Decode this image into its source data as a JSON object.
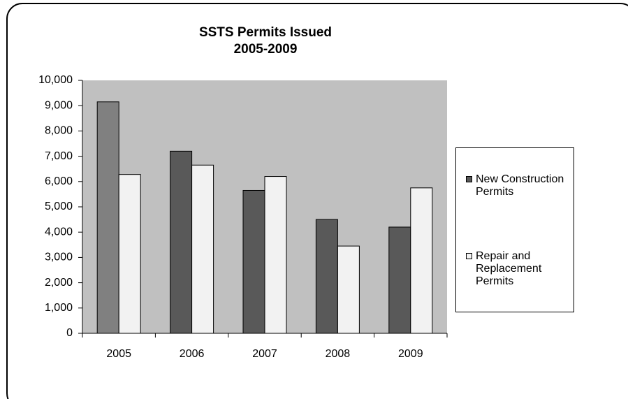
{
  "chart_data": {
    "type": "bar",
    "title": "SSTS Permits Issued",
    "subtitle": "2005-2009",
    "categories": [
      "2005",
      "2006",
      "2007",
      "2008",
      "2009"
    ],
    "series": [
      {
        "name": "New Construction Permits",
        "color": "#595959",
        "colors": [
          "#808080",
          "#595959",
          "#595959",
          "#595959",
          "#595959"
        ],
        "values": [
          9150,
          7200,
          5650,
          4500,
          4200
        ]
      },
      {
        "name": "Repair and Replacement Permits",
        "color": "#f2f2f2",
        "values": [
          6280,
          6650,
          6200,
          3450,
          5750
        ]
      }
    ],
    "ylim": [
      0,
      10000
    ],
    "yticks": [
      0,
      {
        "value": 1000,
        "label": "1,000"
      },
      {
        "value": 2000,
        "label": "2,000"
      },
      {
        "value": 3000,
        "label": "3,000"
      },
      {
        "value": 4000,
        "label": "4,000"
      },
      {
        "value": 5000,
        "label": "5,000"
      },
      {
        "value": 6000,
        "label": "6,000"
      },
      {
        "value": 7000,
        "label": "7,000"
      },
      {
        "value": 8000,
        "label": "8,000"
      },
      {
        "value": 9000,
        "label": "9,000"
      },
      {
        "value": 10000,
        "label": "10,000"
      }
    ],
    "grid": false,
    "legend": "right",
    "plot_background": "#c0c0c0"
  }
}
